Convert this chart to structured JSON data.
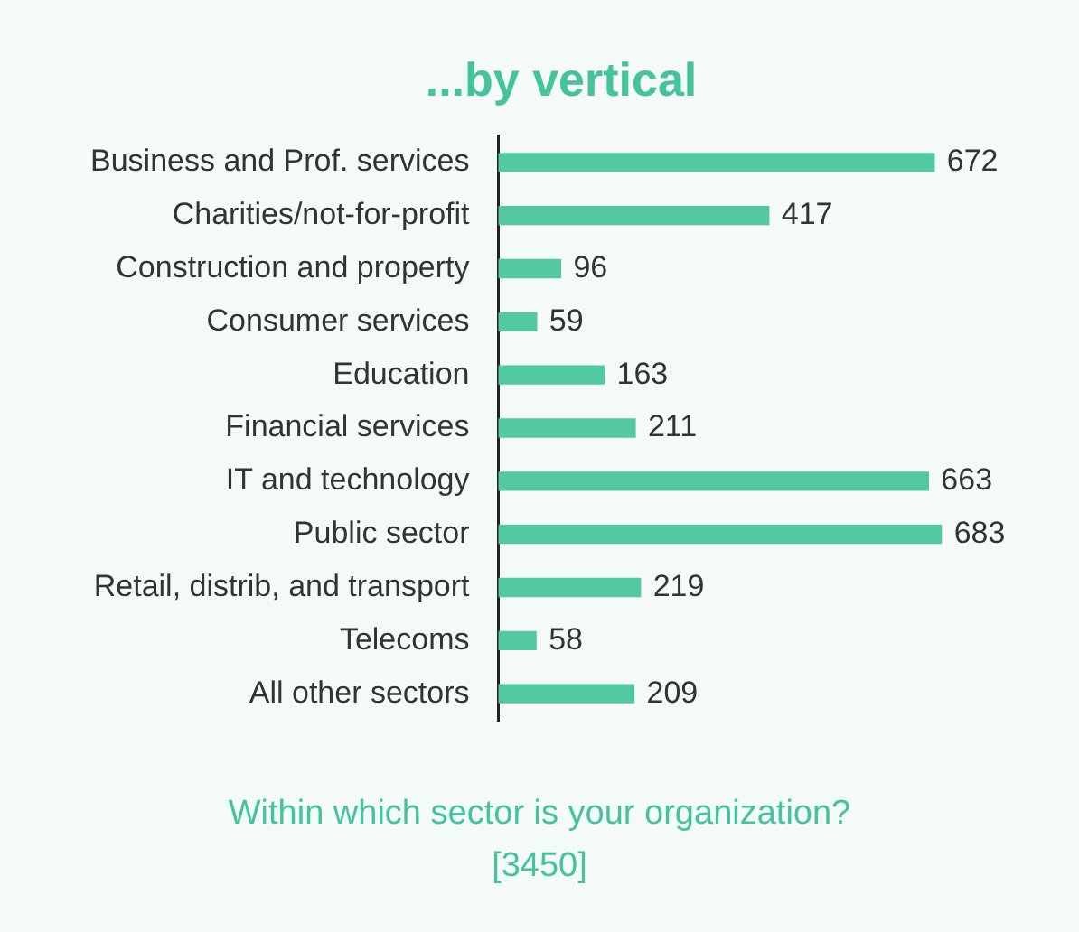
{
  "chart_data": {
    "type": "bar",
    "orientation": "horizontal",
    "title": "...by vertical",
    "categories": [
      "Business and Prof. services",
      "Charities/not-for-profit",
      "Construction and property",
      "Consumer services",
      "Education",
      "Financial services",
      "IT and technology",
      "Public sector",
      "Retail, distrib, and transport",
      "Telecoms",
      "All other sectors"
    ],
    "values": [
      672,
      417,
      96,
      59,
      163,
      211,
      663,
      683,
      219,
      58,
      209
    ],
    "color": "#52c9a2",
    "data_labels": true,
    "legend": false,
    "tick_labels": "y",
    "annotations": [
      "Within which sector is your organization?",
      "[3450]"
    ]
  }
}
